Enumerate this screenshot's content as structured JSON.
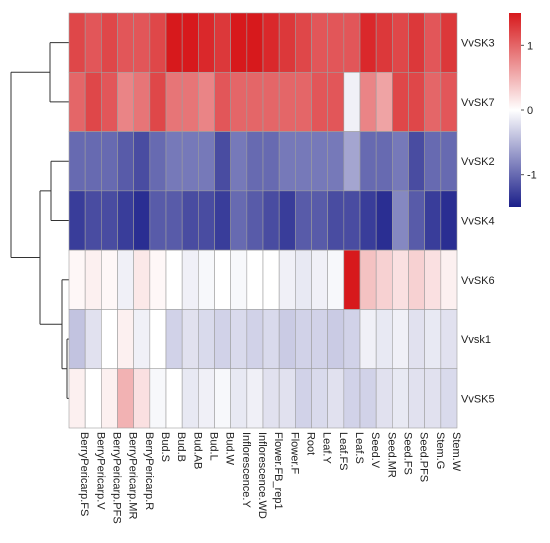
{
  "chart_data": {
    "type": "heatmap",
    "title": "",
    "rows": [
      "VvSK3",
      "VvSK7",
      "VvSK2",
      "VvSK4",
      "VvSK6",
      "Vvsk1",
      "VvSK5"
    ],
    "columns": [
      "BerryPericarp.FS",
      "BerryPericarp.V",
      "BerryPericarp.PFS",
      "BerryPericarp.MR",
      "BerryPericarp.R",
      "Bud.S",
      "Bud.B",
      "Bud.AB",
      "Bud.L",
      "Bud.W",
      "Inflorescence.Y",
      "Inflorescence.WD",
      "Flower.FB_rep1",
      "Flower.F",
      "Root",
      "Leaf.Y",
      "Leaf.FS",
      "Leaf.S",
      "Seed.V",
      "Seed.MR",
      "Seed.FS",
      "Seed.PFS",
      "Stem.G",
      "Stem.W"
    ],
    "values": [
      [
        1.2,
        1.1,
        1.2,
        1.1,
        1.1,
        1.2,
        1.8,
        1.6,
        1.4,
        1.3,
        1.8,
        1.5,
        1.4,
        1.3,
        1.2,
        1.1,
        1.1,
        1.1,
        1.4,
        1.3,
        1.2,
        1.3,
        1.1,
        1.3
      ],
      [
        1.0,
        1.2,
        1.1,
        0.8,
        0.9,
        1.2,
        0.9,
        0.9,
        0.8,
        1.1,
        1.0,
        1.0,
        1.0,
        1.0,
        1.0,
        1.1,
        1.1,
        -0.1,
        0.8,
        0.6,
        1.2,
        1.2,
        1.0,
        1.1
      ],
      [
        -1.0,
        -1.0,
        -1.0,
        -1.1,
        -1.2,
        -1.0,
        -0.9,
        -0.9,
        -0.9,
        -1.2,
        -0.9,
        -1.0,
        -1.0,
        -0.9,
        -0.9,
        -0.9,
        -0.9,
        -0.6,
        -1.0,
        -1.0,
        -0.9,
        -1.2,
        -1.0,
        -1.0
      ],
      [
        -1.3,
        -1.2,
        -1.2,
        -1.3,
        -1.4,
        -1.1,
        -1.1,
        -1.2,
        -1.2,
        -1.3,
        -1.0,
        -1.1,
        -1.2,
        -1.3,
        -1.1,
        -1.1,
        -1.2,
        -1.2,
        -1.3,
        -1.4,
        -0.8,
        -1.1,
        -1.3,
        -1.4
      ],
      [
        0.05,
        0.1,
        0.05,
        -0.1,
        0.15,
        0.05,
        0.0,
        -0.1,
        -0.05,
        0.0,
        -0.05,
        0.0,
        0.0,
        -0.1,
        -0.15,
        -0.1,
        -0.05,
        1.8,
        0.4,
        0.3,
        0.2,
        0.3,
        0.2,
        0.1
      ],
      [
        -0.4,
        -0.2,
        0.0,
        0.1,
        -0.1,
        0.0,
        -0.3,
        -0.2,
        -0.25,
        -0.3,
        -0.25,
        -0.3,
        -0.25,
        -0.35,
        -0.3,
        -0.3,
        -0.35,
        -0.3,
        -0.1,
        -0.15,
        -0.1,
        -0.2,
        -0.15,
        -0.2
      ],
      [
        0.1,
        0.0,
        0.1,
        0.5,
        0.2,
        -0.05,
        0.0,
        -0.15,
        -0.1,
        -0.05,
        -0.15,
        -0.1,
        -0.2,
        -0.2,
        -0.3,
        -0.25,
        -0.2,
        -0.3,
        -0.3,
        -0.2,
        -0.15,
        -0.2,
        -0.2,
        -0.25
      ]
    ],
    "color_scale": {
      "low": "#1b1f8a",
      "mid": "#ffffff",
      "high": "#d7191c",
      "range": [
        -1.5,
        1.5
      ]
    },
    "legend": {
      "position": "top-right",
      "ticks": [
        1,
        0,
        -1
      ],
      "tick_labels": [
        "1",
        "0",
        "-1"
      ]
    },
    "row_dendrogram": true,
    "grid": true
  }
}
